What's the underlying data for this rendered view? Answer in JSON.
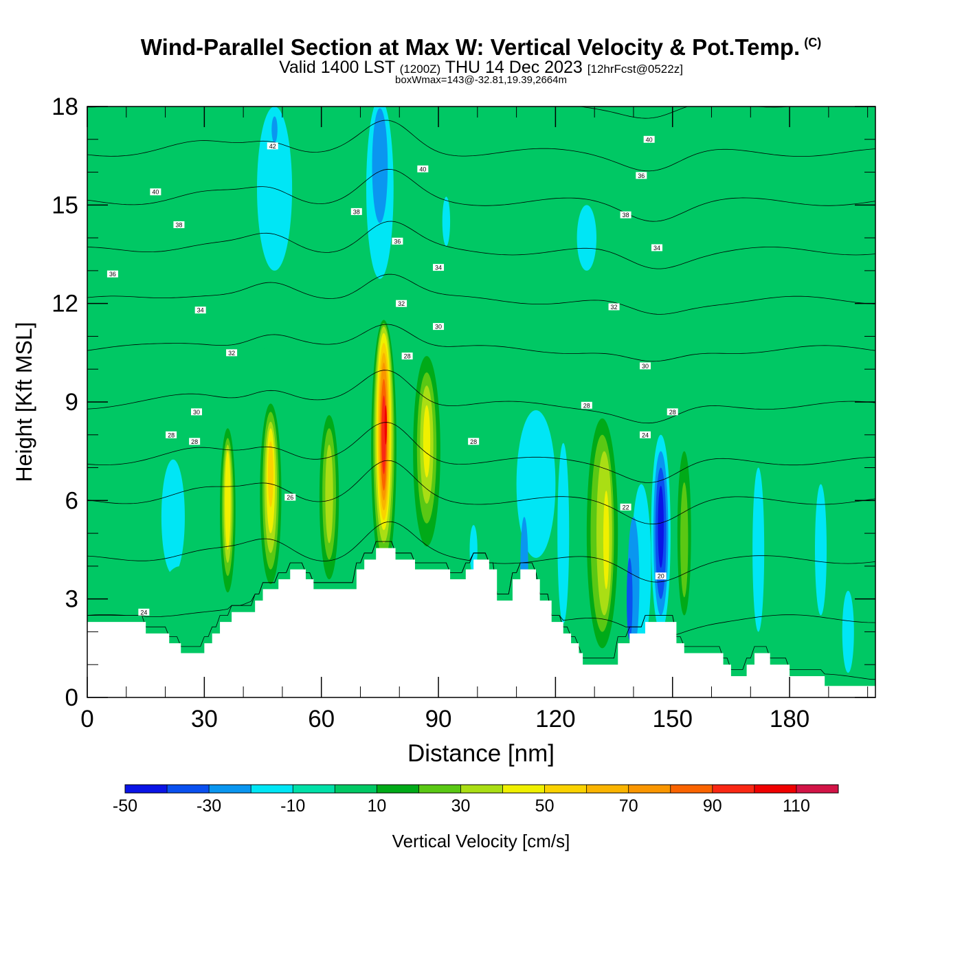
{
  "chart_data": {
    "type": "heatmap",
    "title": "Wind-Parallel Section at Max W: Vertical Velocity & Pot.Temp.",
    "copyright_mark": "(C)",
    "subtitle_main": "Valid 1400 LST",
    "subtitle_utc": "(1200Z)",
    "subtitle_date": "THU 14 Dec 2023",
    "subtitle_fcst": "[12hrFcst@0522z]",
    "annotation": "boxWmax=143@-32.81,19.39,2664m",
    "xlabel": "Distance [nm]",
    "ylabel": "Height [Kft MSL]",
    "xlim": [
      0,
      202
    ],
    "ylim": [
      0,
      18
    ],
    "xticks": [
      0,
      30,
      60,
      90,
      120,
      150,
      180
    ],
    "yticks": [
      0,
      3,
      6,
      9,
      12,
      15,
      18
    ],
    "colorbar": {
      "label": "Vertical Velocity [cm/s]",
      "bounds": [
        -50,
        -40,
        -30,
        -20,
        -10,
        0,
        10,
        20,
        30,
        40,
        50,
        60,
        70,
        80,
        90,
        100,
        110,
        120
      ],
      "tick_labels": [
        "-50",
        "-30",
        "-10",
        "10",
        "30",
        "50",
        "70",
        "90",
        "110"
      ],
      "colors": [
        "#0a14e6",
        "#0a50f0",
        "#0a96f0",
        "#00e6f5",
        "#00e0a8",
        "#00c864",
        "#00aa18",
        "#5ac814",
        "#aade14",
        "#f0f000",
        "#fad200",
        "#fab400",
        "#fa9600",
        "#fa6400",
        "#fa2814",
        "#f00000",
        "#d21446"
      ]
    },
    "background_value": 0,
    "cells": [
      {
        "x": 2.5,
        "y": 14,
        "w": 3,
        "h": 4,
        "v": 5
      },
      {
        "x": 8,
        "y": 12,
        "w": 3,
        "h": 6,
        "v": 5
      },
      {
        "x": 19,
        "y": 13.5,
        "w": 3,
        "h": 4,
        "v": 5
      },
      {
        "x": 30,
        "y": 16.5,
        "w": 3,
        "h": 3,
        "v": 5
      },
      {
        "x": 48,
        "y": 15.5,
        "w": 9,
        "h": 5,
        "v": -15
      },
      {
        "x": 48,
        "y": 17.3,
        "w": 1.5,
        "h": 0.8,
        "v": -25
      },
      {
        "x": 75,
        "y": 15.5,
        "w": 7,
        "h": 5.5,
        "v": -15
      },
      {
        "x": 75,
        "y": 16.2,
        "w": 4,
        "h": 3.5,
        "v": -25
      },
      {
        "x": 92,
        "y": 14.5,
        "w": 2,
        "h": 1.5,
        "v": -15
      },
      {
        "x": 107,
        "y": 13.5,
        "w": 6,
        "h": 3,
        "v": 5
      },
      {
        "x": 128,
        "y": 14,
        "w": 5,
        "h": 2,
        "v": -15
      },
      {
        "x": 142,
        "y": 16.5,
        "w": 10,
        "h": 2,
        "v": 5
      },
      {
        "x": 153,
        "y": 13,
        "w": 2,
        "h": 1.5,
        "v": 5
      },
      {
        "x": 121,
        "y": 10,
        "w": 6,
        "h": 2,
        "v": 5
      },
      {
        "x": 147,
        "y": 10,
        "w": 7,
        "h": 2.5,
        "v": 5
      },
      {
        "x": 182,
        "y": 9.5,
        "w": 8,
        "h": 4,
        "v": 5
      },
      {
        "x": 200,
        "y": 6,
        "w": 5,
        "h": 5,
        "v": 5
      },
      {
        "x": 21,
        "y": 8.5,
        "w": 2,
        "h": 1,
        "v": 5
      },
      {
        "x": 47,
        "y": 10,
        "w": 7,
        "h": 1.4,
        "v": 5
      },
      {
        "x": 22,
        "y": 5.5,
        "w": 6,
        "h": 3.5,
        "v": -15
      },
      {
        "x": 24,
        "y": 3,
        "w": 10,
        "h": 2,
        "v": 5
      },
      {
        "x": 36,
        "y": 5.5,
        "w": 5,
        "h": 6,
        "v": 5
      },
      {
        "x": 36,
        "y": 5.7,
        "w": 4,
        "h": 5,
        "v": 15
      },
      {
        "x": 36,
        "y": 5.8,
        "w": 3,
        "h": 4.2,
        "v": 25
      },
      {
        "x": 36,
        "y": 5.9,
        "w": 2.2,
        "h": 3.6,
        "v": 35
      },
      {
        "x": 36,
        "y": 6,
        "w": 1.5,
        "h": 3,
        "v": 45
      },
      {
        "x": 47,
        "y": 6,
        "w": 7,
        "h": 6.5,
        "v": 5
      },
      {
        "x": 47,
        "y": 6.2,
        "w": 5.5,
        "h": 5.5,
        "v": 15
      },
      {
        "x": 47,
        "y": 6.3,
        "w": 4.2,
        "h": 4.8,
        "v": 25
      },
      {
        "x": 47,
        "y": 6.4,
        "w": 3.2,
        "h": 4,
        "v": 35
      },
      {
        "x": 47,
        "y": 6.6,
        "w": 2.2,
        "h": 3.2,
        "v": 45
      },
      {
        "x": 47,
        "y": 6.8,
        "w": 1.4,
        "h": 2,
        "v": 55
      },
      {
        "x": 62,
        "y": 6,
        "w": 7,
        "h": 6,
        "v": 5
      },
      {
        "x": 62,
        "y": 6.1,
        "w": 5,
        "h": 5,
        "v": 15
      },
      {
        "x": 62,
        "y": 6.2,
        "w": 3.5,
        "h": 4,
        "v": 25
      },
      {
        "x": 62,
        "y": 6.2,
        "w": 2,
        "h": 3,
        "v": 35
      },
      {
        "x": 76,
        "y": 7.5,
        "w": 8,
        "h": 8.5,
        "v": 5
      },
      {
        "x": 76,
        "y": 7.6,
        "w": 6.5,
        "h": 7.8,
        "v": 15
      },
      {
        "x": 76,
        "y": 7.8,
        "w": 5.4,
        "h": 7.2,
        "v": 25
      },
      {
        "x": 76,
        "y": 8,
        "w": 4.6,
        "h": 6.6,
        "v": 35
      },
      {
        "x": 76,
        "y": 8.1,
        "w": 3.8,
        "h": 6,
        "v": 45
      },
      {
        "x": 76,
        "y": 8.1,
        "w": 3.2,
        "h": 5.4,
        "v": 55
      },
      {
        "x": 76,
        "y": 8.1,
        "w": 2.6,
        "h": 4.8,
        "v": 65
      },
      {
        "x": 76,
        "y": 8.1,
        "w": 2.1,
        "h": 4.2,
        "v": 75
      },
      {
        "x": 76,
        "y": 8,
        "w": 1.6,
        "h": 3.4,
        "v": 85
      },
      {
        "x": 76,
        "y": 8,
        "w": 1.1,
        "h": 2.4,
        "v": 95
      },
      {
        "x": 76.5,
        "y": 8.3,
        "w": 0.6,
        "h": 1.2,
        "v": 105
      },
      {
        "x": 87,
        "y": 7.5,
        "w": 9,
        "h": 7,
        "v": 5
      },
      {
        "x": 87,
        "y": 7.5,
        "w": 7,
        "h": 5.8,
        "v": 15
      },
      {
        "x": 87,
        "y": 7.6,
        "w": 5,
        "h": 4.6,
        "v": 25
      },
      {
        "x": 87,
        "y": 7.7,
        "w": 3.4,
        "h": 3.6,
        "v": 35
      },
      {
        "x": 87,
        "y": 7.8,
        "w": 1.8,
        "h": 2.2,
        "v": 45
      },
      {
        "x": 101,
        "y": 5.5,
        "w": 5,
        "h": 7,
        "v": 5
      },
      {
        "x": 99,
        "y": 4.5,
        "w": 2,
        "h": 1.5,
        "v": -15
      },
      {
        "x": 115,
        "y": 6.5,
        "w": 10,
        "h": 4.5,
        "v": -15
      },
      {
        "x": 112,
        "y": 4,
        "w": 2,
        "h": 3,
        "v": -25
      },
      {
        "x": 122,
        "y": 5,
        "w": 3,
        "h": 5.5,
        "v": -15
      },
      {
        "x": 132,
        "y": 5,
        "w": 10,
        "h": 8,
        "v": 5
      },
      {
        "x": 132,
        "y": 5,
        "w": 8,
        "h": 7,
        "v": 15
      },
      {
        "x": 132,
        "y": 5,
        "w": 6,
        "h": 6,
        "v": 25
      },
      {
        "x": 132.5,
        "y": 5,
        "w": 4,
        "h": 5,
        "v": 35
      },
      {
        "x": 133,
        "y": 4.8,
        "w": 1.5,
        "h": 3,
        "v": 45
      },
      {
        "x": 142,
        "y": 4,
        "w": 5,
        "h": 5,
        "v": -15
      },
      {
        "x": 140,
        "y": 3.5,
        "w": 3,
        "h": 4,
        "v": -25
      },
      {
        "x": 139,
        "y": 3,
        "w": 1.5,
        "h": 2.5,
        "v": -35
      },
      {
        "x": 147,
        "y": 5,
        "w": 5,
        "h": 6,
        "v": -15
      },
      {
        "x": 147,
        "y": 5,
        "w": 3.8,
        "h": 5,
        "v": -25
      },
      {
        "x": 147,
        "y": 5,
        "w": 2.8,
        "h": 4,
        "v": -35
      },
      {
        "x": 147,
        "y": 5.2,
        "w": 1.5,
        "h": 2.5,
        "v": -45
      },
      {
        "x": 153,
        "y": 5,
        "w": 5,
        "h": 6,
        "v": 5
      },
      {
        "x": 153,
        "y": 5,
        "w": 3.5,
        "h": 5,
        "v": 15
      },
      {
        "x": 153,
        "y": 4.8,
        "w": 2,
        "h": 3.5,
        "v": 25
      },
      {
        "x": 161,
        "y": 5,
        "w": 3,
        "h": 4,
        "v": 5
      },
      {
        "x": 166,
        "y": 4,
        "w": 3,
        "h": 6,
        "v": 5
      },
      {
        "x": 172,
        "y": 4.5,
        "w": 3,
        "h": 5,
        "v": -15
      },
      {
        "x": 181,
        "y": 5,
        "w": 3,
        "h": 5,
        "v": 5
      },
      {
        "x": 188,
        "y": 4.5,
        "w": 3,
        "h": 4,
        "v": -15
      },
      {
        "x": 198,
        "y": 4,
        "w": 5,
        "h": 5,
        "v": 5
      },
      {
        "x": 195,
        "y": 2,
        "w": 3,
        "h": 2.5,
        "v": -15
      }
    ],
    "terrain_profile": [
      [
        0,
        2.3
      ],
      [
        10,
        2.3
      ],
      [
        15,
        2.3
      ],
      [
        15,
        1.95
      ],
      [
        21,
        1.95
      ],
      [
        21,
        1.65
      ],
      [
        24,
        1.65
      ],
      [
        24,
        1.35
      ],
      [
        30,
        1.35
      ],
      [
        30,
        1.65
      ],
      [
        32,
        1.65
      ],
      [
        32,
        1.95
      ],
      [
        34,
        1.95
      ],
      [
        34,
        2.3
      ],
      [
        37,
        2.3
      ],
      [
        37,
        2.6
      ],
      [
        43,
        2.6
      ],
      [
        43,
        2.95
      ],
      [
        45,
        2.95
      ],
      [
        45,
        3.3
      ],
      [
        49,
        3.3
      ],
      [
        49,
        3.6
      ],
      [
        52,
        3.6
      ],
      [
        52,
        3.9
      ],
      [
        56,
        3.9
      ],
      [
        56,
        3.6
      ],
      [
        58,
        3.6
      ],
      [
        58,
        3.3
      ],
      [
        69,
        3.3
      ],
      [
        69,
        3.9
      ],
      [
        71,
        3.9
      ],
      [
        71,
        4.2
      ],
      [
        74,
        4.2
      ],
      [
        74,
        4.55
      ],
      [
        79,
        4.55
      ],
      [
        79,
        4.2
      ],
      [
        84,
        4.2
      ],
      [
        84,
        3.9
      ],
      [
        93,
        3.9
      ],
      [
        93,
        3.6
      ],
      [
        97,
        3.6
      ],
      [
        97,
        3.9
      ],
      [
        99,
        3.9
      ],
      [
        99,
        4.2
      ],
      [
        103,
        4.2
      ],
      [
        103,
        3.9
      ],
      [
        105,
        3.9
      ],
      [
        105,
        2.95
      ],
      [
        109,
        2.95
      ],
      [
        109,
        3.6
      ],
      [
        111,
        3.6
      ],
      [
        111,
        3.9
      ],
      [
        115,
        3.9
      ],
      [
        115,
        3.6
      ],
      [
        116,
        3.6
      ],
      [
        116,
        2.95
      ],
      [
        119,
        2.95
      ],
      [
        119,
        2.3
      ],
      [
        122,
        2.3
      ],
      [
        122,
        1.95
      ],
      [
        124,
        1.95
      ],
      [
        124,
        1.65
      ],
      [
        126,
        1.65
      ],
      [
        126,
        1.35
      ],
      [
        127,
        1.35
      ],
      [
        127,
        1.0
      ],
      [
        136,
        1.0
      ],
      [
        136,
        1.65
      ],
      [
        139,
        1.65
      ],
      [
        139,
        1.95
      ],
      [
        143,
        1.95
      ],
      [
        143,
        2.3
      ],
      [
        151,
        2.3
      ],
      [
        151,
        1.65
      ],
      [
        153,
        1.65
      ],
      [
        153,
        1.35
      ],
      [
        163,
        1.35
      ],
      [
        163,
        1.0
      ],
      [
        165,
        1.0
      ],
      [
        165,
        0.65
      ],
      [
        169,
        0.65
      ],
      [
        169,
        1.0
      ],
      [
        171,
        1.0
      ],
      [
        171,
        1.35
      ],
      [
        175,
        1.35
      ],
      [
        175,
        1.0
      ],
      [
        180,
        1.0
      ],
      [
        180,
        0.65
      ],
      [
        189,
        0.65
      ],
      [
        189,
        0.35
      ],
      [
        202,
        0.35
      ]
    ],
    "theta_contours": [
      {
        "level": 20,
        "label": "20"
      },
      {
        "level": 22,
        "label": "22"
      },
      {
        "level": 24,
        "label": "24"
      },
      {
        "level": 26,
        "label": "26"
      },
      {
        "level": 28,
        "label": "28"
      },
      {
        "level": 30,
        "label": "30"
      },
      {
        "level": 32,
        "label": "32"
      },
      {
        "level": 34,
        "label": "34"
      },
      {
        "level": 36,
        "label": "36"
      },
      {
        "level": 38,
        "label": "38"
      },
      {
        "level": 40,
        "label": "40"
      },
      {
        "level": 42,
        "label": "42"
      }
    ],
    "contour_labels": [
      {
        "x": 47.5,
        "y": 16.8,
        "text": "42"
      },
      {
        "x": 17.5,
        "y": 15.4,
        "text": "40"
      },
      {
        "x": 86,
        "y": 16.1,
        "text": "40"
      },
      {
        "x": 144,
        "y": 17.0,
        "text": "40"
      },
      {
        "x": 23.5,
        "y": 14.4,
        "text": "38"
      },
      {
        "x": 69,
        "y": 14.8,
        "text": "38"
      },
      {
        "x": 142,
        "y": 15.9,
        "text": "36"
      },
      {
        "x": 6.5,
        "y": 12.9,
        "text": "36"
      },
      {
        "x": 79.5,
        "y": 13.9,
        "text": "36"
      },
      {
        "x": 138,
        "y": 14.7,
        "text": "38"
      },
      {
        "x": 29,
        "y": 11.8,
        "text": "34"
      },
      {
        "x": 90,
        "y": 13.1,
        "text": "34"
      },
      {
        "x": 146,
        "y": 13.7,
        "text": "34"
      },
      {
        "x": 37,
        "y": 10.5,
        "text": "32"
      },
      {
        "x": 80.5,
        "y": 12.0,
        "text": "32"
      },
      {
        "x": 135,
        "y": 11.9,
        "text": "32"
      },
      {
        "x": 90,
        "y": 11.3,
        "text": "30"
      },
      {
        "x": 28,
        "y": 8.7,
        "text": "30"
      },
      {
        "x": 143,
        "y": 10.1,
        "text": "30"
      },
      {
        "x": 82,
        "y": 10.4,
        "text": "28"
      },
      {
        "x": 21.5,
        "y": 8.0,
        "text": "28"
      },
      {
        "x": 27.5,
        "y": 7.8,
        "text": "28"
      },
      {
        "x": 128,
        "y": 8.9,
        "text": "28"
      },
      {
        "x": 150,
        "y": 8.7,
        "text": "28"
      },
      {
        "x": 99,
        "y": 7.8,
        "text": "28"
      },
      {
        "x": 52,
        "y": 6.1,
        "text": "26"
      },
      {
        "x": 143,
        "y": 8.0,
        "text": "24"
      },
      {
        "x": 14.5,
        "y": 2.6,
        "text": "24"
      },
      {
        "x": 138,
        "y": 5.8,
        "text": "22"
      },
      {
        "x": 147,
        "y": 3.7,
        "text": "20"
      }
    ]
  }
}
